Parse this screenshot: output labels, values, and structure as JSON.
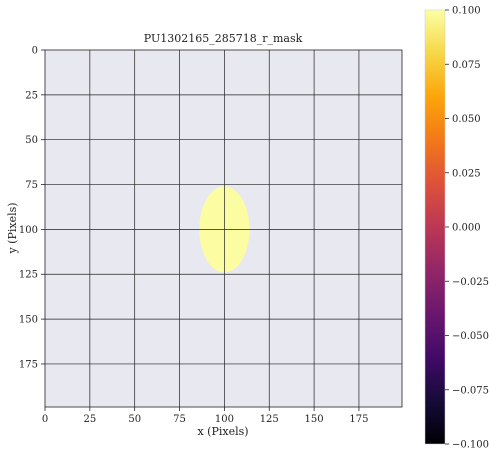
{
  "chart_data": {
    "type": "heatmap",
    "title": "PU1302165_285718_r_mask",
    "xlabel": "x (Pixels)",
    "ylabel": "y (Pixels)",
    "xlim": [
      0,
      199
    ],
    "ylim": [
      199,
      0
    ],
    "xticks": [
      0,
      25,
      50,
      75,
      100,
      125,
      150,
      175
    ],
    "yticks": [
      0,
      25,
      50,
      75,
      100,
      125,
      150,
      175
    ],
    "grid": true,
    "background_color": "#e8e8f0",
    "grid_color": "#222222",
    "mask_region": {
      "shape": "ellipse",
      "center_x": 100,
      "center_y": 100,
      "radius_x": 14,
      "radius_y": 24,
      "value": 0.1,
      "color": "#fcfda2"
    },
    "colorbar": {
      "colormap": "inferno",
      "vmin": -0.1,
      "vmax": 0.1,
      "ticks": [
        0.1,
        0.075,
        0.05,
        0.025,
        0.0,
        -0.025,
        -0.05,
        -0.075,
        -0.1
      ],
      "tick_labels": [
        "0.100",
        "0.075",
        "0.050",
        "0.025",
        "0.000",
        "−0.025",
        "−0.050",
        "−0.075",
        "−0.100"
      ]
    }
  }
}
